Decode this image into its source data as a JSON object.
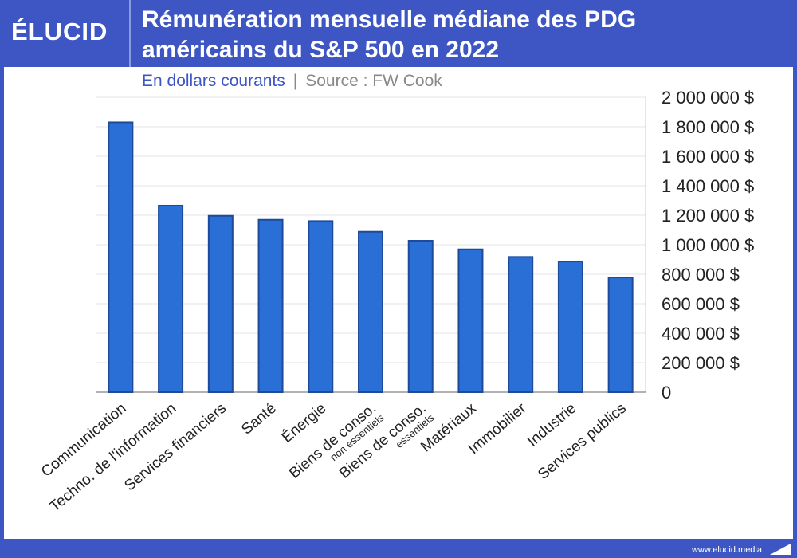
{
  "header": {
    "logo": "ÉLUCID",
    "title_line1": "Rémunération mensuelle médiane des PDG",
    "title_line2": "américains du S&P 500 en 2022"
  },
  "subtitle": {
    "unit": "En dollars courants",
    "separator": "|",
    "source": "Source : FW Cook"
  },
  "footer": {
    "url": "www.elucid.media"
  },
  "colors": {
    "bar": "#2a6fd6",
    "bar_edge": "#1d4a99",
    "brand": "#3d56c4"
  },
  "chart_data": {
    "type": "bar",
    "title": "Rémunération mensuelle médiane des PDG américains du S&P 500 en 2022",
    "categories": [
      "Communication",
      "Techno. de l'information",
      "Services financiers",
      "Santé",
      "Énergie",
      "Biens de conso.",
      "Biens de conso.",
      "Matériaux",
      "Immobilier",
      "Industrie",
      "Services publics"
    ],
    "category_sublabels": [
      "",
      "",
      "",
      "",
      "",
      "non essentiels",
      "essentiels",
      "",
      "",
      "",
      ""
    ],
    "values": [
      1830000,
      1265000,
      1196000,
      1169000,
      1160000,
      1088000,
      1027000,
      969000,
      917000,
      886000,
      778000
    ],
    "ylim": [
      0,
      2000000
    ],
    "yticks": [
      0,
      200000,
      400000,
      600000,
      800000,
      1000000,
      1200000,
      1400000,
      1600000,
      1800000,
      2000000
    ],
    "ytick_labels": [
      "0",
      "200 000 $",
      "400 000 $",
      "600 000 $",
      "800 000 $",
      "1 000 000 $",
      "1 200 000 $",
      "1 400 000 $",
      "1 600 000 $",
      "1 800 000 $",
      "2 000 000 $"
    ],
    "yaxis_position": "right",
    "grid": true
  }
}
